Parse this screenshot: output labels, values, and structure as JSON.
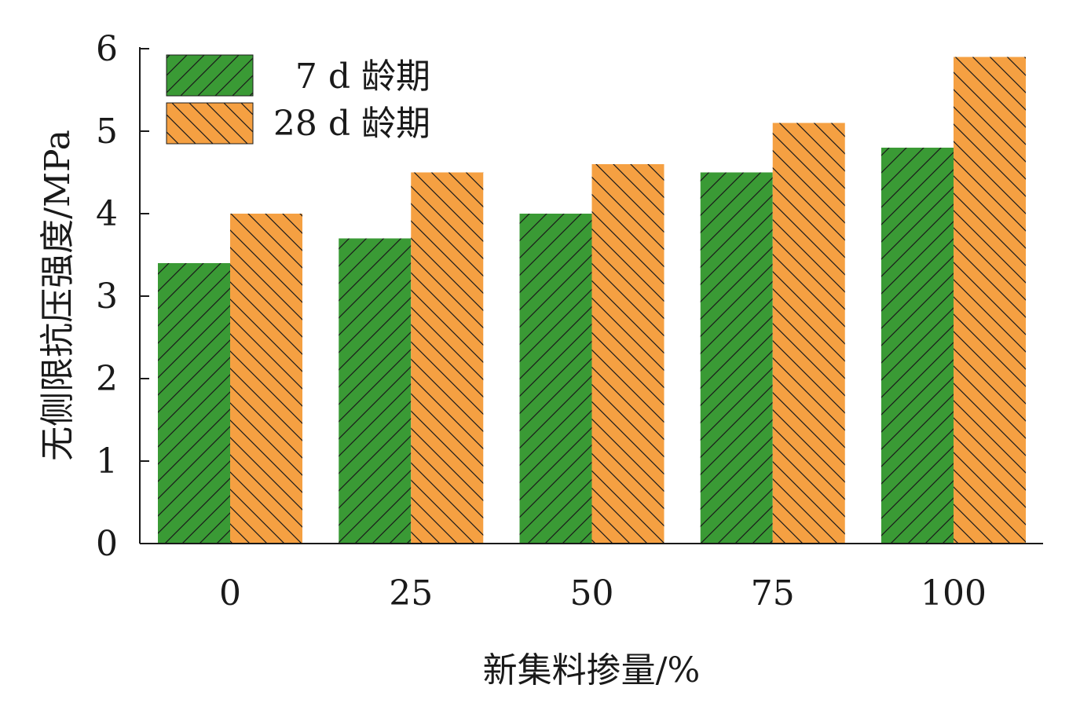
{
  "chart_data": {
    "type": "bar",
    "xlabel": "新集料掺量/%",
    "ylabel": "无侧限抗压强度/MPa",
    "categories": [
      "0",
      "25",
      "50",
      "75",
      "100"
    ],
    "ylim": [
      0,
      6
    ],
    "yticks": [
      "0",
      "1",
      "2",
      "3",
      "4",
      "5",
      "6"
    ],
    "legend_position": "top-left",
    "grid": false,
    "series": [
      {
        "name": "7 d 龄期",
        "values": [
          3.4,
          3.7,
          4.0,
          4.5,
          4.8
        ],
        "color": "#3a9a35",
        "hatch": "forward-diagonal"
      },
      {
        "name": "28 d 龄期",
        "values": [
          4.0,
          4.5,
          4.6,
          5.1,
          5.9
        ],
        "color": "#f5a042",
        "hatch": "back-diagonal"
      }
    ]
  }
}
